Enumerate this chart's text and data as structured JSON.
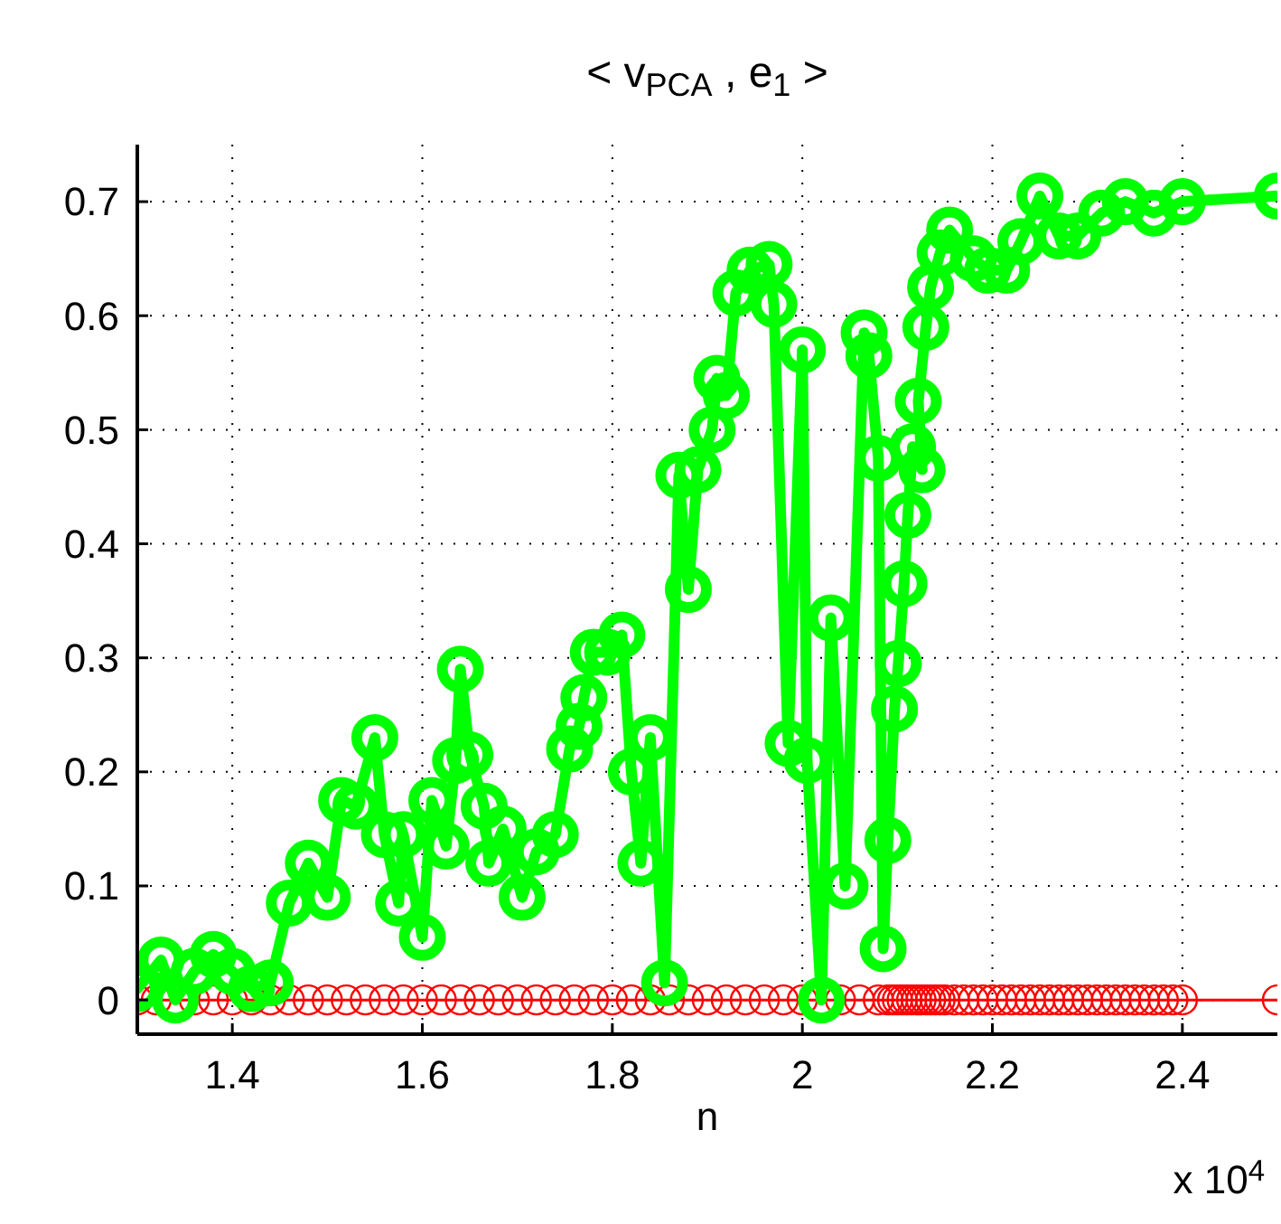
{
  "chart_data": {
    "type": "line",
    "title": "< v$_{PCA}$ , e$_{1}$ >",
    "xlabel": "n",
    "annotations": [
      "x 10$^{4}$"
    ],
    "xlim": [
      1.3,
      2.5
    ],
    "ylim": [
      -0.03,
      0.75
    ],
    "xticks": [
      1.4,
      1.6,
      1.8,
      2,
      2.2,
      2.4
    ],
    "yticks": [
      0,
      0.1,
      0.2,
      0.3,
      0.4,
      0.5,
      0.6,
      0.7
    ],
    "grid": true,
    "marker": "circle",
    "line_style": "solid",
    "series": [
      {
        "color": "#ff0000",
        "x": [
          1.3,
          1.32,
          1.34,
          1.36,
          1.38,
          1.4,
          1.42,
          1.44,
          1.46,
          1.48,
          1.5,
          1.52,
          1.54,
          1.56,
          1.58,
          1.6,
          1.62,
          1.64,
          1.66,
          1.68,
          1.7,
          1.72,
          1.74,
          1.76,
          1.78,
          1.8,
          1.82,
          1.84,
          1.86,
          1.88,
          1.9,
          1.92,
          1.94,
          1.96,
          1.98,
          2.0,
          2.02,
          2.04,
          2.06,
          2.08,
          2.09,
          2.095,
          2.1,
          2.105,
          2.11,
          2.115,
          2.12,
          2.125,
          2.13,
          2.135,
          2.14,
          2.145,
          2.15,
          2.16,
          2.17,
          2.18,
          2.19,
          2.2,
          2.21,
          2.22,
          2.23,
          2.24,
          2.25,
          2.26,
          2.27,
          2.28,
          2.29,
          2.3,
          2.31,
          2.32,
          2.33,
          2.34,
          2.35,
          2.36,
          2.37,
          2.38,
          2.39,
          2.4,
          2.5
        ],
        "values": [
          0,
          0,
          0,
          0,
          0,
          0,
          0,
          0,
          0,
          0,
          0,
          0,
          0,
          0,
          0,
          0,
          0,
          0,
          0,
          0,
          0,
          0,
          0,
          0,
          0,
          0,
          0,
          0,
          0,
          0,
          0,
          0,
          0,
          0,
          0,
          0,
          0,
          0,
          0,
          0,
          0,
          0,
          0,
          0,
          0,
          0,
          0,
          0,
          0,
          0,
          0,
          0,
          0,
          0,
          0,
          0,
          0,
          0,
          0,
          0,
          0,
          0,
          0,
          0,
          0,
          0,
          0,
          0,
          0,
          0,
          0,
          0,
          0,
          0,
          0,
          0,
          0,
          0,
          0
        ]
      },
      {
        "color": "#00ff00",
        "x": [
          1.3,
          1.325,
          1.34,
          1.36,
          1.38,
          1.4,
          1.42,
          1.44,
          1.46,
          1.48,
          1.5,
          1.515,
          1.53,
          1.55,
          1.56,
          1.575,
          1.58,
          1.6,
          1.61,
          1.625,
          1.635,
          1.64,
          1.65,
          1.665,
          1.67,
          1.685,
          1.705,
          1.72,
          1.74,
          1.755,
          1.765,
          1.77,
          1.78,
          1.795,
          1.81,
          1.82,
          1.83,
          1.84,
          1.855,
          1.87,
          1.88,
          1.89,
          1.905,
          1.91,
          1.92,
          1.93,
          1.945,
          1.965,
          1.97,
          1.985,
          2.0,
          2.005,
          2.02,
          2.03,
          2.045,
          2.065,
          2.07,
          2.08,
          2.085,
          2.09,
          2.097,
          2.101,
          2.107,
          2.111,
          2.116,
          2.126,
          2.122,
          2.13,
          2.135,
          2.145,
          2.155,
          2.18,
          2.195,
          2.215,
          2.23,
          2.25,
          2.27,
          2.29,
          2.315,
          2.34,
          2.37,
          2.4,
          2.5
        ],
        "values": [
          0.01,
          0.035,
          0,
          0.025,
          0.04,
          0.025,
          0.01,
          0.015,
          0.085,
          0.12,
          0.09,
          0.175,
          0.17,
          0.23,
          0.145,
          0.085,
          0.145,
          0.055,
          0.175,
          0.135,
          0.21,
          0.29,
          0.215,
          0.17,
          0.12,
          0.15,
          0.09,
          0.13,
          0.145,
          0.22,
          0.24,
          0.265,
          0.305,
          0.305,
          0.32,
          0.2,
          0.12,
          0.23,
          0.015,
          0.46,
          0.36,
          0.465,
          0.5,
          0.545,
          0.53,
          0.62,
          0.64,
          0.645,
          0.61,
          0.225,
          0.57,
          0.21,
          0,
          0.335,
          0.1,
          0.585,
          0.565,
          0.475,
          0.045,
          0.14,
          0.255,
          0.295,
          0.365,
          0.425,
          0.485,
          0.465,
          0.525,
          0.59,
          0.625,
          0.655,
          0.675,
          0.65,
          0.64,
          0.64,
          0.665,
          0.705,
          0.67,
          0.67,
          0.69,
          0.7,
          0.69,
          0.7,
          0.705
        ]
      }
    ]
  }
}
